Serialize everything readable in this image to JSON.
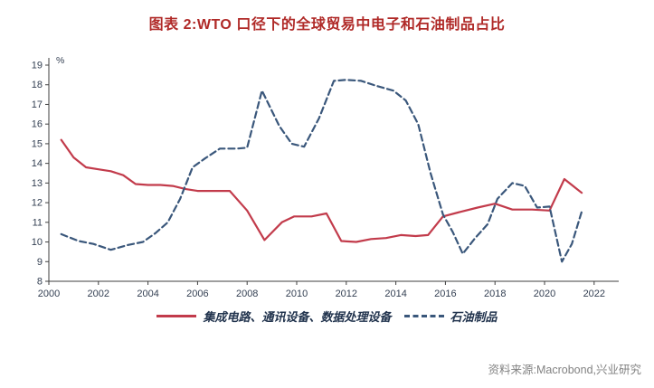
{
  "title": "图表 2:WTO 口径下的全球贸易中电子和石油制品占比",
  "source": "资料来源:Macrobond,兴业研究",
  "colors": {
    "title": "#B02A28",
    "axis": "#3f3f3f",
    "tick_text": "#333f52",
    "legend_text": "#22344e",
    "source_text": "#828282"
  },
  "chart_data": {
    "type": "line",
    "title": "图表 2:WTO 口径下的全球贸易中电子和石油制品占比",
    "ylabel_unit": "%",
    "ylim": [
      8,
      19
    ],
    "yticks": [
      8,
      9,
      10,
      11,
      12,
      13,
      14,
      15,
      16,
      17,
      18,
      19
    ],
    "xlim": [
      2000,
      2022.7
    ],
    "xticks": [
      2000,
      2002,
      2004,
      2006,
      2008,
      2010,
      2012,
      2014,
      2016,
      2018,
      2020,
      2022
    ],
    "grid": false,
    "legend_position": "bottom",
    "series": [
      {
        "key": "electronics",
        "name": "集成电路、通讯设备、数据处理设备",
        "style": "solid",
        "color": "#C23B4B",
        "points": [
          [
            2000.5,
            15.2
          ],
          [
            2001.0,
            14.3
          ],
          [
            2001.5,
            13.8
          ],
          [
            2002.0,
            13.7
          ],
          [
            2002.5,
            13.6
          ],
          [
            2003.0,
            13.4
          ],
          [
            2003.5,
            12.95
          ],
          [
            2004.0,
            12.9
          ],
          [
            2004.5,
            12.9
          ],
          [
            2005.0,
            12.85
          ],
          [
            2005.5,
            12.7
          ],
          [
            2006.0,
            12.6
          ],
          [
            2006.6,
            12.6
          ],
          [
            2007.3,
            12.6
          ],
          [
            2008.0,
            11.6
          ],
          [
            2008.7,
            10.1
          ],
          [
            2009.4,
            11.0
          ],
          [
            2009.9,
            11.3
          ],
          [
            2010.6,
            11.3
          ],
          [
            2011.2,
            11.45
          ],
          [
            2011.8,
            10.05
          ],
          [
            2012.4,
            10.0
          ],
          [
            2013.0,
            10.15
          ],
          [
            2013.6,
            10.2
          ],
          [
            2014.2,
            10.35
          ],
          [
            2014.8,
            10.3
          ],
          [
            2015.3,
            10.35
          ],
          [
            2015.9,
            11.3
          ],
          [
            2016.5,
            11.5
          ],
          [
            2017.3,
            11.75
          ],
          [
            2018.0,
            11.95
          ],
          [
            2018.7,
            11.65
          ],
          [
            2019.5,
            11.65
          ],
          [
            2020.2,
            11.6
          ],
          [
            2020.8,
            13.2
          ],
          [
            2021.5,
            12.5
          ]
        ]
      },
      {
        "key": "petroleum",
        "name": "石油制品",
        "style": "dashed",
        "color": "#3A577B",
        "points": [
          [
            2000.5,
            10.4
          ],
          [
            2001.2,
            10.05
          ],
          [
            2001.8,
            9.9
          ],
          [
            2002.5,
            9.6
          ],
          [
            2003.2,
            9.85
          ],
          [
            2003.8,
            10.0
          ],
          [
            2004.3,
            10.45
          ],
          [
            2004.8,
            11.0
          ],
          [
            2005.3,
            12.2
          ],
          [
            2005.8,
            13.8
          ],
          [
            2006.3,
            14.25
          ],
          [
            2006.9,
            14.75
          ],
          [
            2007.6,
            14.75
          ],
          [
            2008.0,
            14.8
          ],
          [
            2008.6,
            17.7
          ],
          [
            2009.3,
            15.9
          ],
          [
            2009.8,
            15.0
          ],
          [
            2010.3,
            14.85
          ],
          [
            2010.9,
            16.3
          ],
          [
            2011.5,
            18.2
          ],
          [
            2012.0,
            18.25
          ],
          [
            2012.6,
            18.2
          ],
          [
            2013.2,
            17.95
          ],
          [
            2013.9,
            17.7
          ],
          [
            2014.4,
            17.2
          ],
          [
            2014.9,
            16.0
          ],
          [
            2015.4,
            13.5
          ],
          [
            2015.9,
            11.4
          ],
          [
            2016.3,
            10.5
          ],
          [
            2016.7,
            9.4
          ],
          [
            2017.2,
            10.2
          ],
          [
            2017.7,
            10.9
          ],
          [
            2018.1,
            12.2
          ],
          [
            2018.7,
            13.0
          ],
          [
            2019.2,
            12.85
          ],
          [
            2019.7,
            11.75
          ],
          [
            2020.2,
            11.8
          ],
          [
            2020.7,
            9.0
          ],
          [
            2021.1,
            9.9
          ],
          [
            2021.5,
            11.55
          ]
        ]
      }
    ]
  }
}
